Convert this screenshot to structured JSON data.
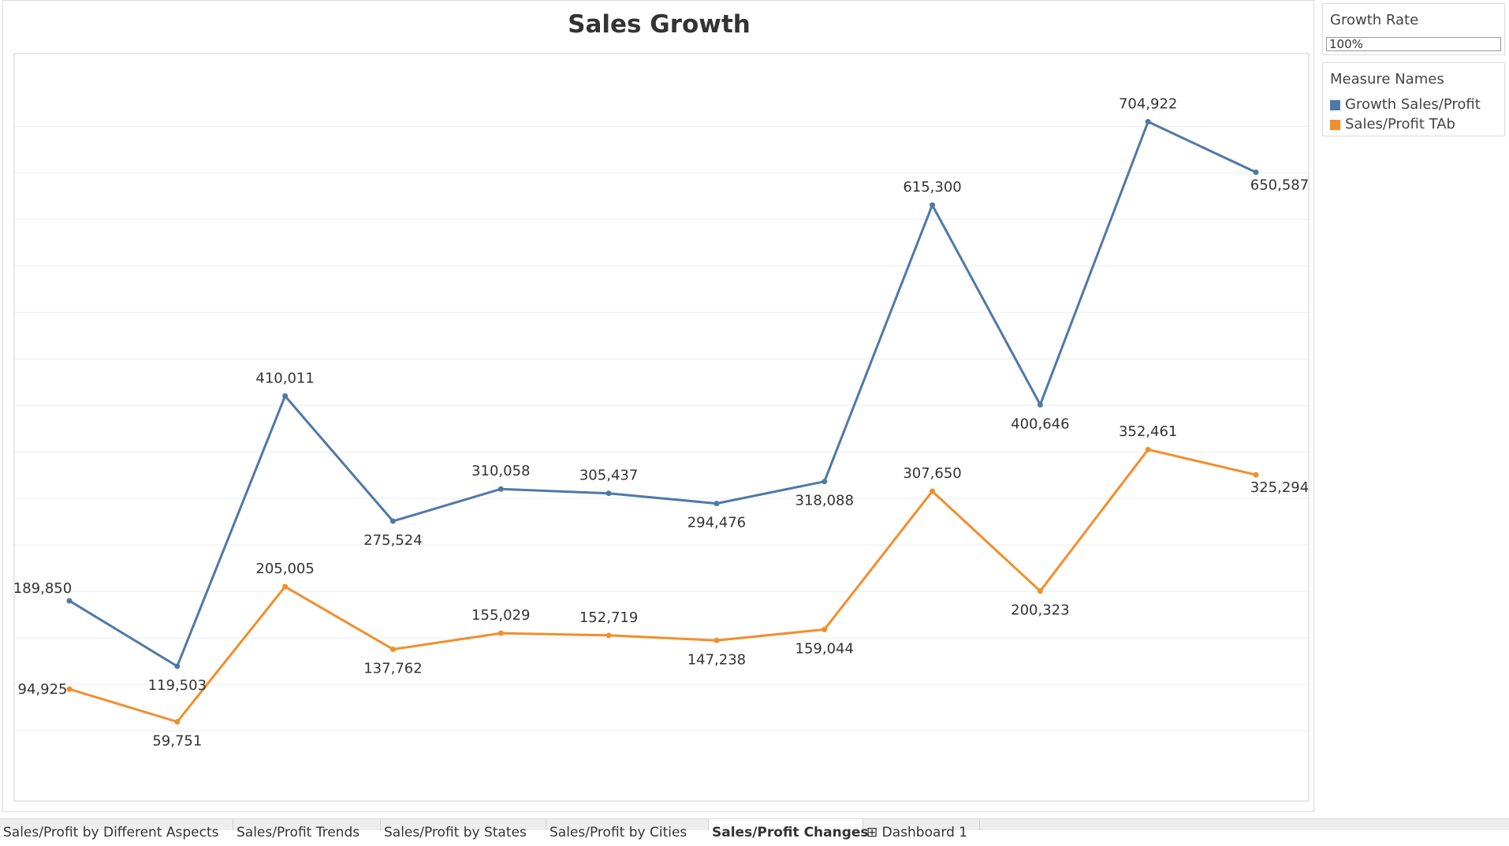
{
  "side_panel": {
    "growth_rate": {
      "title": "Growth Rate",
      "value": "100%"
    },
    "legend": {
      "title": "Measure Names",
      "items": [
        {
          "label": "Growth Sales/Profit",
          "color": "#4e79a7"
        },
        {
          "label": "Sales/Profit TAb",
          "color": "#f28e2b"
        }
      ]
    }
  },
  "tabs": [
    {
      "label": "Sales/Profit by Different Aspects"
    },
    {
      "label": "Sales/Profit Trends"
    },
    {
      "label": "Sales/Profit by States"
    },
    {
      "label": "Sales/Profit by Cities"
    },
    {
      "label": "Sales/Profit Changes",
      "active": true
    },
    {
      "label": "⊞ Dashboard 1"
    }
  ],
  "chart_data": {
    "type": "line",
    "title": "Sales Growth",
    "xlabel": "",
    "ylabel": "",
    "ylim": [
      0,
      740000
    ],
    "grid": true,
    "legend_position": "right",
    "series": [
      {
        "name": "Growth Sales/Profit",
        "color": "#4e79a7",
        "values": [
          189850,
          119503,
          410011,
          275524,
          310058,
          305437,
          294476,
          318088,
          615300,
          400646,
          704922,
          650587
        ],
        "labels": [
          "189,850",
          "119,503",
          "410,011",
          "275,524",
          "310,058",
          "305,437",
          "294,476",
          "318,088",
          "615,300",
          "400,646",
          "704,922",
          "650,587"
        ]
      },
      {
        "name": "Sales/Profit TAb",
        "color": "#f28e2b",
        "values": [
          94925,
          59751,
          205005,
          137762,
          155029,
          152719,
          147238,
          159044,
          307650,
          200323,
          352461,
          325294
        ],
        "labels": [
          "94,925",
          "59,751",
          "205,005",
          "137,762",
          "155,029",
          "152,719",
          "147,238",
          "159,044",
          "307,650",
          "200,323",
          "352,461",
          "325,294"
        ]
      }
    ]
  }
}
